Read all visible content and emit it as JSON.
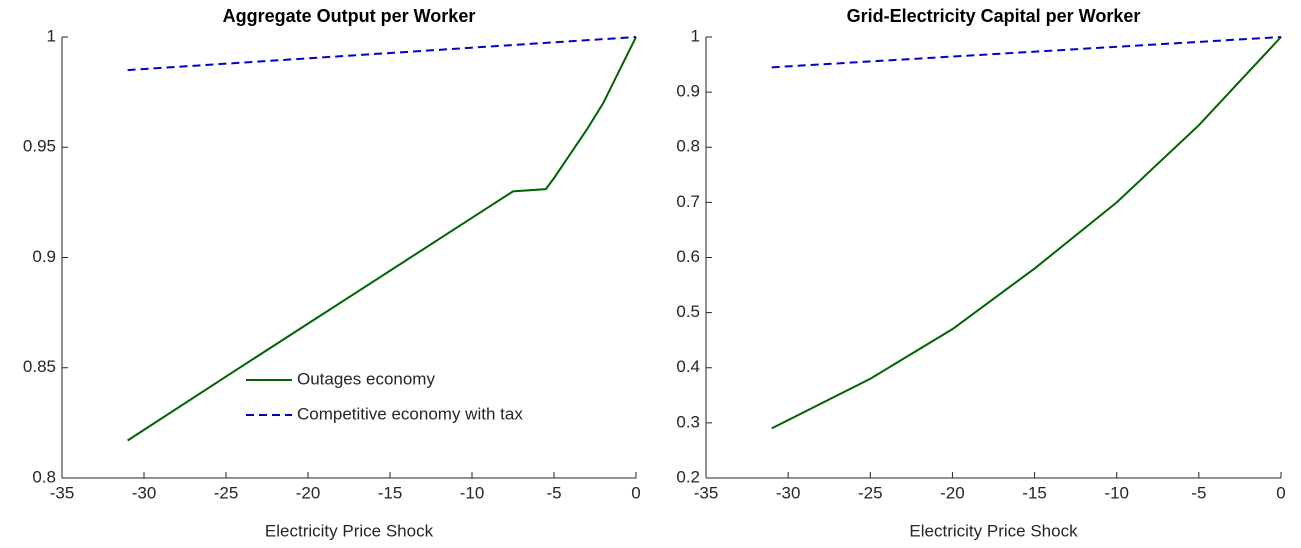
{
  "chart_data": [
    {
      "type": "line",
      "title": "Aggregate Output per Worker",
      "xlabel": "Electricity Price Shock",
      "xlim": [
        -35,
        0
      ],
      "ylim": [
        0.8,
        1
      ],
      "xticks": [
        -35,
        -30,
        -25,
        -20,
        -15,
        -10,
        -5,
        0
      ],
      "yticks": [
        0.8,
        0.85,
        0.9,
        0.95,
        1
      ],
      "legend": "lower right",
      "series": [
        {
          "name": "Outages economy",
          "color": "#006400",
          "style": "solid",
          "x": [
            -31,
            -25,
            -20,
            -15,
            -10,
            -7.5,
            -5.5,
            -5,
            -4,
            -3,
            -2,
            -1,
            0
          ],
          "values": [
            0.817,
            0.846,
            0.87,
            0.894,
            0.918,
            0.93,
            0.931,
            0.936,
            0.947,
            0.958,
            0.97,
            0.985,
            1.0
          ]
        },
        {
          "name": "Competitive economy with tax",
          "color": "#0000cd",
          "style": "dashed",
          "x": [
            -31,
            0
          ],
          "values": [
            0.985,
            1.0
          ]
        }
      ]
    },
    {
      "type": "line",
      "title": "Grid-Electricity Capital per Worker",
      "xlabel": "Electricity Price Shock",
      "xlim": [
        -35,
        0
      ],
      "ylim": [
        0.2,
        1
      ],
      "xticks": [
        -35,
        -30,
        -25,
        -20,
        -15,
        -10,
        -5,
        0
      ],
      "yticks": [
        0.2,
        0.3,
        0.4,
        0.5,
        0.6,
        0.7,
        0.8,
        0.9,
        1
      ],
      "series": [
        {
          "color": "#006400",
          "style": "solid",
          "x": [
            -31,
            -25,
            -20,
            -15,
            -10,
            -5,
            0
          ],
          "values": [
            0.29,
            0.38,
            0.47,
            0.58,
            0.7,
            0.84,
            1.0
          ]
        },
        {
          "color": "#0000cd",
          "style": "dashed",
          "x": [
            -31,
            0
          ],
          "values": [
            0.945,
            1.0
          ]
        }
      ]
    }
  ]
}
